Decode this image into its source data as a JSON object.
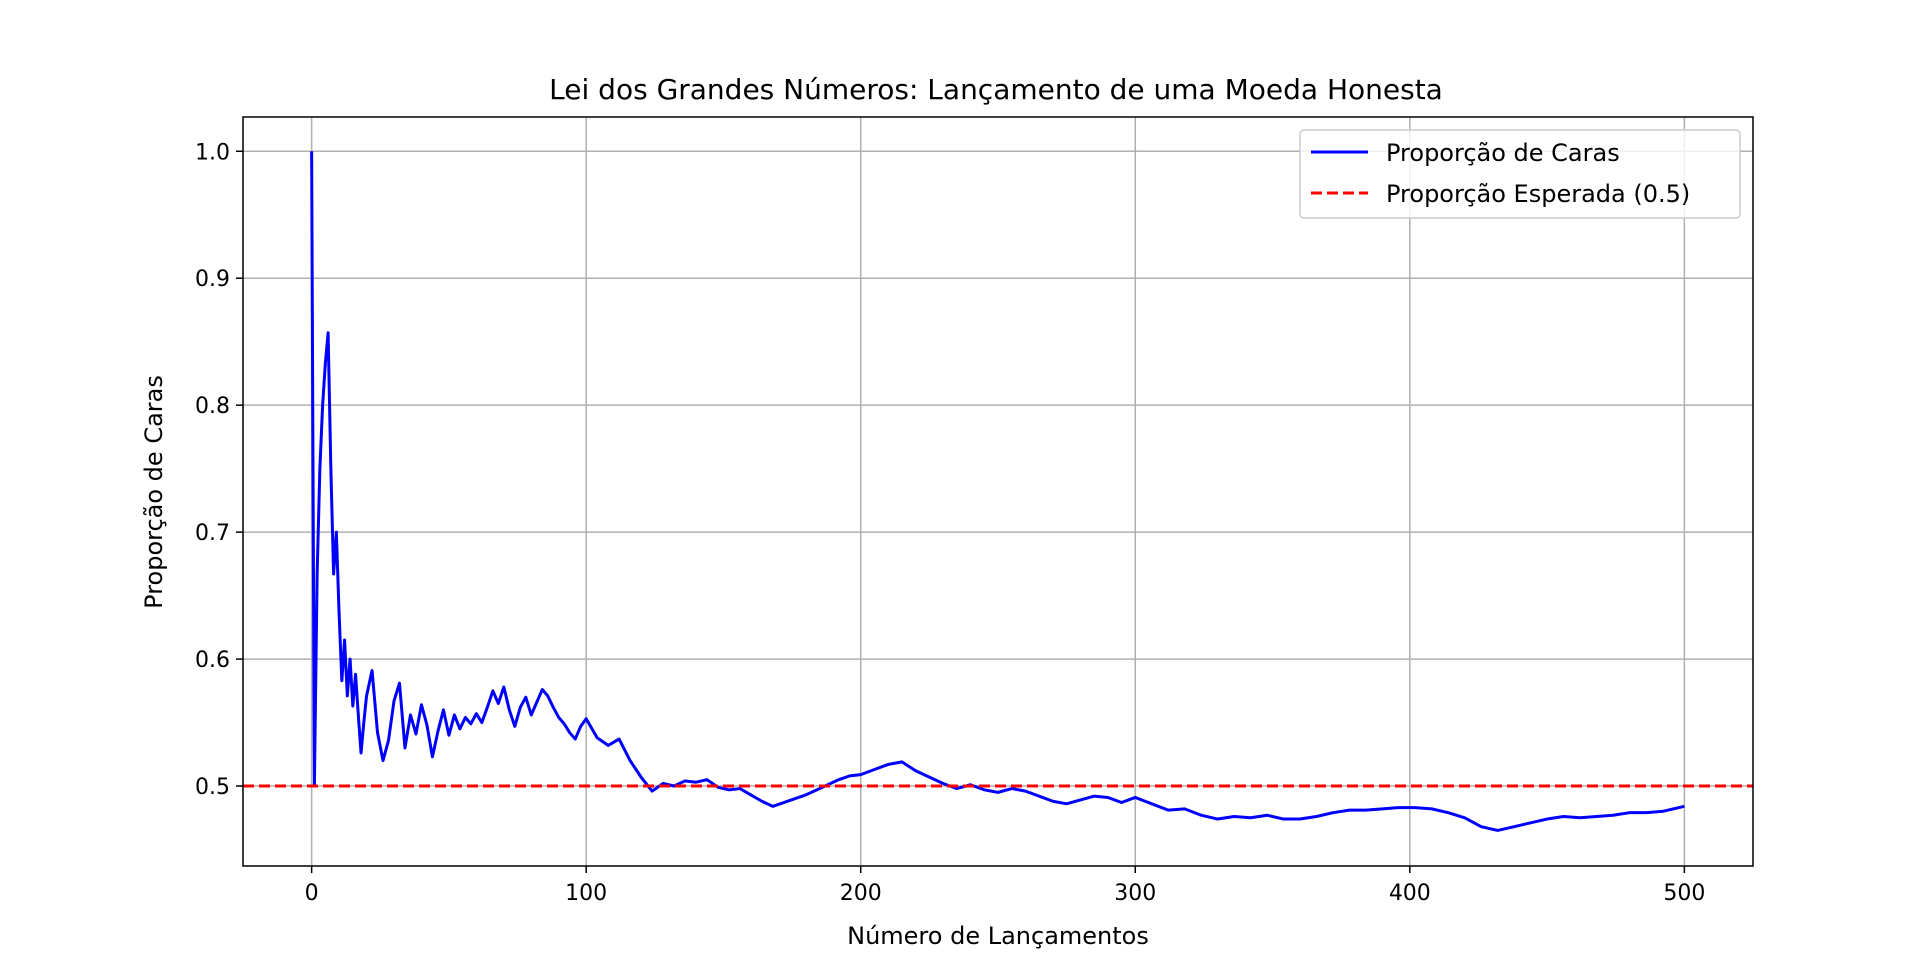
{
  "chart_data": {
    "type": "line",
    "title": "Lei dos Grandes Números: Lançamento de uma Moeda Honesta",
    "xlabel": "Número de Lançamentos",
    "ylabel": "Proporção de Caras",
    "xlim": [
      -25,
      525
    ],
    "ylim": [
      0.437,
      1.027
    ],
    "xticks": [
      0,
      100,
      200,
      300,
      400,
      500
    ],
    "yticks": [
      0.5,
      0.6,
      0.7,
      0.8,
      0.9,
      1.0
    ],
    "xtick_labels": [
      "0",
      "100",
      "200",
      "300",
      "400",
      "500"
    ],
    "ytick_labels": [
      "0.5",
      "0.6",
      "0.7",
      "0.8",
      "0.9",
      "1.0"
    ],
    "grid": true,
    "legend_position": "top-right",
    "series": [
      {
        "name": "Proporção de Caras",
        "color": "#0000ff",
        "style": "solid",
        "x": [
          0,
          1,
          2,
          3,
          4,
          5,
          6,
          7,
          8,
          9,
          10,
          11,
          12,
          13,
          14,
          15,
          16,
          17,
          18,
          19,
          20,
          22,
          24,
          26,
          28,
          30,
          32,
          34,
          36,
          38,
          40,
          42,
          44,
          46,
          48,
          50,
          52,
          54,
          56,
          58,
          60,
          62,
          64,
          66,
          68,
          70,
          72,
          74,
          76,
          78,
          80,
          82,
          84,
          86,
          88,
          90,
          92,
          94,
          96,
          98,
          100,
          104,
          108,
          112,
          116,
          120,
          124,
          128,
          132,
          136,
          140,
          144,
          148,
          152,
          156,
          160,
          164,
          168,
          172,
          176,
          180,
          184,
          188,
          192,
          196,
          200,
          205,
          210,
          215,
          220,
          225,
          230,
          235,
          240,
          245,
          250,
          255,
          260,
          265,
          270,
          275,
          280,
          285,
          290,
          295,
          300,
          306,
          312,
          318,
          324,
          330,
          336,
          342,
          348,
          354,
          360,
          366,
          372,
          378,
          384,
          390,
          396,
          402,
          408,
          414,
          420,
          426,
          432,
          438,
          444,
          450,
          456,
          462,
          468,
          474,
          480,
          486,
          492,
          500
        ],
        "values": [
          1.0,
          0.5,
          0.667,
          0.75,
          0.8,
          0.833,
          0.857,
          0.75,
          0.667,
          0.7,
          0.636,
          0.583,
          0.615,
          0.571,
          0.6,
          0.563,
          0.588,
          0.556,
          0.526,
          0.55,
          0.571,
          0.591,
          0.542,
          0.52,
          0.536,
          0.567,
          0.581,
          0.53,
          0.556,
          0.541,
          0.564,
          0.548,
          0.523,
          0.543,
          0.56,
          0.54,
          0.556,
          0.545,
          0.554,
          0.549,
          0.557,
          0.55,
          0.562,
          0.575,
          0.565,
          0.578,
          0.56,
          0.547,
          0.562,
          0.57,
          0.556,
          0.566,
          0.576,
          0.571,
          0.562,
          0.554,
          0.549,
          0.542,
          0.537,
          0.547,
          0.553,
          0.538,
          0.532,
          0.537,
          0.52,
          0.507,
          0.496,
          0.502,
          0.5,
          0.504,
          0.503,
          0.505,
          0.499,
          0.497,
          0.498,
          0.493,
          0.488,
          0.484,
          0.487,
          0.49,
          0.493,
          0.497,
          0.501,
          0.505,
          0.508,
          0.509,
          0.513,
          0.517,
          0.519,
          0.512,
          0.507,
          0.502,
          0.498,
          0.501,
          0.497,
          0.495,
          0.498,
          0.496,
          0.492,
          0.488,
          0.486,
          0.489,
          0.492,
          0.491,
          0.487,
          0.491,
          0.486,
          0.481,
          0.482,
          0.477,
          0.474,
          0.476,
          0.475,
          0.477,
          0.474,
          0.474,
          0.476,
          0.479,
          0.481,
          0.481,
          0.482,
          0.483,
          0.483,
          0.482,
          0.479,
          0.475,
          0.468,
          0.465,
          0.468,
          0.471,
          0.474,
          0.476,
          0.475,
          0.476,
          0.477,
          0.479,
          0.479,
          0.48,
          0.484
        ]
      },
      {
        "name": "Proporção Esperada (0.5)",
        "color": "#ff0000",
        "style": "dashed",
        "x": [
          -25,
          525
        ],
        "values": [
          0.5,
          0.5
        ]
      }
    ]
  }
}
